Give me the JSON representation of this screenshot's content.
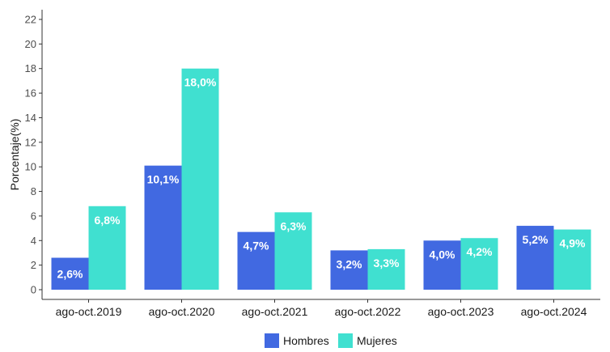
{
  "chart_data": {
    "type": "bar",
    "categories": [
      "ago-oct.2019",
      "ago-oct.2020",
      "ago-oct.2021",
      "ago-oct.2022",
      "ago-oct.2023",
      "ago-oct.2024"
    ],
    "series": [
      {
        "name": "Hombres",
        "color": "#4169e1",
        "values": [
          2.6,
          10.1,
          4.7,
          3.2,
          4.0,
          5.2
        ],
        "labels": [
          "2,6%",
          "10,1%",
          "4,7%",
          "3,2%",
          "4,0%",
          "5,2%"
        ]
      },
      {
        "name": "Mujeres",
        "color": "#40e0d0",
        "values": [
          6.8,
          18.0,
          6.3,
          3.3,
          4.2,
          4.9
        ],
        "labels": [
          "6,8%",
          "18,0%",
          "6,3%",
          "3,3%",
          "4,2%",
          "4,9%"
        ]
      }
    ],
    "title": "",
    "xlabel": "",
    "ylabel": "Porcentaje(%)",
    "ylim": [
      0,
      22
    ],
    "yticks": [
      0,
      2,
      4,
      6,
      8,
      10,
      12,
      14,
      16,
      18,
      20,
      22
    ],
    "grid": false,
    "legend": "bottom"
  }
}
